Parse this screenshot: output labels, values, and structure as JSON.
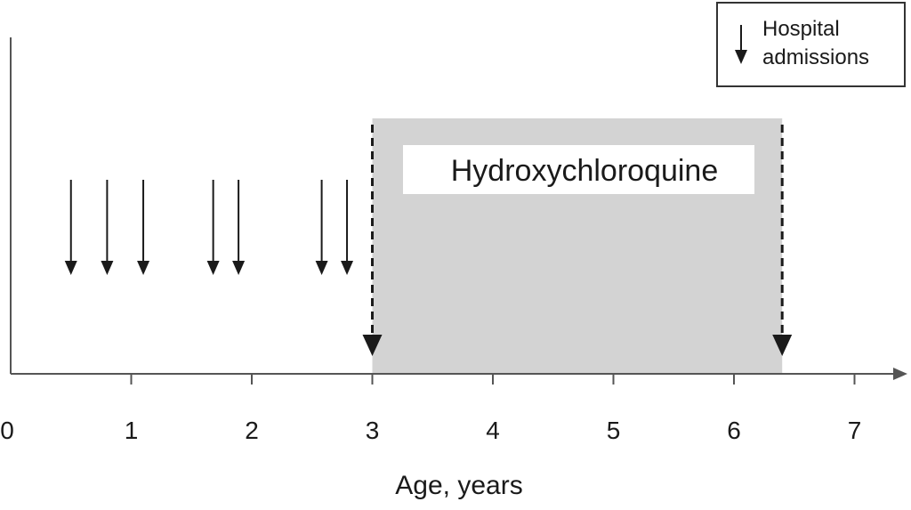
{
  "chart_data": {
    "type": "timeline",
    "x_label": "Age, years",
    "xlim": [
      0,
      7.4
    ],
    "xticks": [
      0,
      1,
      2,
      3,
      4,
      5,
      6,
      7
    ],
    "events": {
      "name": "Hospital admissions",
      "color": "#1a1a1a",
      "x": [
        0.5,
        0.8,
        1.1,
        1.68,
        1.89,
        2.58,
        2.79
      ]
    },
    "periods": [
      {
        "label": "Hydroxychloroquine",
        "start": 3,
        "end": 6.4,
        "color": "#d3d3d3"
      }
    ]
  }
}
